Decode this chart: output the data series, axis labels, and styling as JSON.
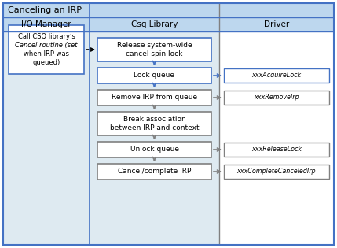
{
  "title": "Canceling an IRP",
  "title_bg": "#BDD7EE",
  "header_bg": "#BDD7EE",
  "col_bg_io": "#DEEAF1",
  "col_bg_csq": "#DEEAF1",
  "col_bg_driver": "#FFFFFF",
  "col_headers": [
    "I/O Manager",
    "Csq Library",
    "Driver"
  ],
  "outer_border": "#4472C4",
  "divider_color": "#4472C4",
  "divider_color2": "#808080",
  "fig_bg": "#FFFFFF",
  "io_box": {
    "text_lines": [
      "Call CSQ library’s",
      "Cancel routine (set",
      "when IRP was",
      "queued)"
    ],
    "italic_line": 1,
    "border": "#4472C4"
  },
  "csq_boxes": [
    {
      "text": "Release system-wide\ncancel spin lock",
      "border": "#4472C4",
      "two_line": true
    },
    {
      "text": "Lock queue",
      "border": "#4472C4",
      "two_line": false
    },
    {
      "text": "Remove IRP from queue",
      "border": "#808080",
      "two_line": false
    },
    {
      "text": "Break association\nbetween IRP and context",
      "border": "#808080",
      "two_line": true
    },
    {
      "text": "Unlock queue",
      "border": "#808080",
      "two_line": false
    },
    {
      "text": "Cancel/complete IRP",
      "border": "#808080",
      "two_line": false
    }
  ],
  "driver_boxes": [
    {
      "text": "xxxAcquireLock",
      "border": "#4472C4",
      "csq_idx": 1
    },
    {
      "text": "xxxRemoveIrp",
      "border": "#808080",
      "csq_idx": 2
    },
    {
      "text": "xxxReleaseLock",
      "border": "#808080",
      "csq_idx": 4
    },
    {
      "text": "xxxCompleteCanceledIrp",
      "border": "#808080",
      "csq_idx": 5
    }
  ]
}
